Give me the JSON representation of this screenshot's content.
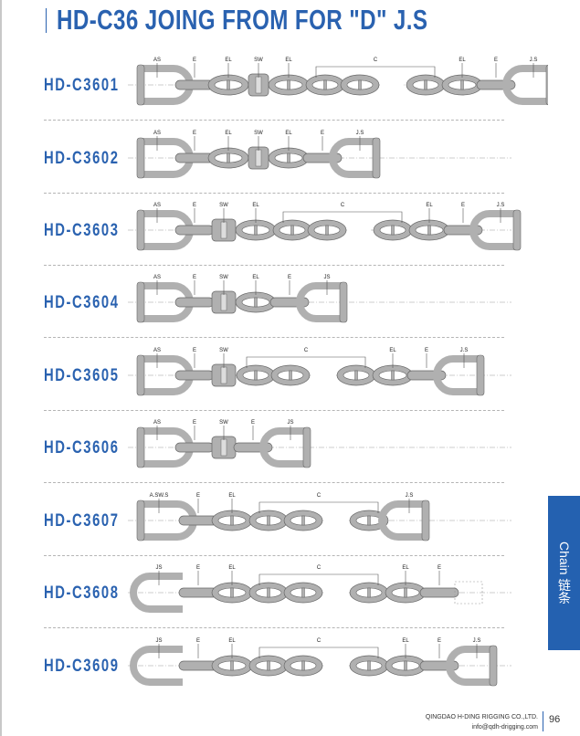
{
  "title": "HD-C36 JOING FROM FOR \"D\" J.S",
  "colors": {
    "brand": "#2a62b0",
    "tab": "#2461b0",
    "chain": "#a9a9a9"
  },
  "rows": [
    {
      "code": "HD-C3601",
      "parts": [
        [
          "shackle",
          "AS"
        ],
        [
          "E",
          "E"
        ],
        [
          "EL",
          "EL"
        ],
        [
          "SW",
          "SW"
        ],
        [
          "EL",
          "EL"
        ],
        [
          "C",
          "C"
        ],
        [
          "EL",
          "EL"
        ],
        [
          "E",
          "E"
        ],
        [
          "shackleR",
          "J.S"
        ]
      ]
    },
    {
      "code": "HD-C3602",
      "parts": [
        [
          "shackle",
          "AS"
        ],
        [
          "E",
          "E"
        ],
        [
          "EL",
          "EL"
        ],
        [
          "SW",
          "SW"
        ],
        [
          "EL",
          "EL"
        ],
        [
          "E",
          "E"
        ],
        [
          "shackleR",
          "J.S"
        ]
      ]
    },
    {
      "code": "HD-C3603",
      "parts": [
        [
          "shackle",
          "AS"
        ],
        [
          "E",
          "E"
        ],
        [
          "SWB",
          "SW"
        ],
        [
          "EL",
          "EL"
        ],
        [
          "C",
          "C"
        ],
        [
          "EL",
          "EL"
        ],
        [
          "E",
          "E"
        ],
        [
          "shackleR",
          "J.S"
        ]
      ]
    },
    {
      "code": "HD-C3604",
      "parts": [
        [
          "shackle",
          "AS"
        ],
        [
          "E",
          "E"
        ],
        [
          "SWB",
          "SW"
        ],
        [
          "EL",
          "EL"
        ],
        [
          "E",
          "E"
        ],
        [
          "shackleR",
          "JS"
        ]
      ]
    },
    {
      "code": "HD-C3605",
      "parts": [
        [
          "shackle",
          "AS"
        ],
        [
          "E",
          "E"
        ],
        [
          "SWB",
          "SW"
        ],
        [
          "C",
          "C"
        ],
        [
          "EL",
          "EL"
        ],
        [
          "E",
          "E"
        ],
        [
          "shackleR",
          "J.S"
        ]
      ]
    },
    {
      "code": "HD-C3606",
      "parts": [
        [
          "shackle",
          "AS"
        ],
        [
          "E",
          "E"
        ],
        [
          "SWB",
          "SW"
        ],
        [
          "E",
          "E"
        ],
        [
          "shackleR",
          "JS"
        ]
      ]
    },
    {
      "code": "HD-C3607",
      "parts": [
        [
          "anchorswivel",
          "A.SW.S"
        ],
        [
          "E",
          "E"
        ],
        [
          "EL",
          "EL"
        ],
        [
          "C",
          "C"
        ],
        [
          "shackleR",
          "J.S"
        ]
      ]
    },
    {
      "code": "HD-C3608",
      "parts": [
        [
          "jshackle",
          "JS"
        ],
        [
          "E",
          "E"
        ],
        [
          "EL",
          "EL"
        ],
        [
          "C",
          "C"
        ],
        [
          "EL",
          "EL"
        ],
        [
          "E",
          "E"
        ],
        [
          "end",
          ""
        ]
      ]
    },
    {
      "code": "HD-C3609",
      "parts": [
        [
          "jshackle",
          "JS"
        ],
        [
          "E",
          "E"
        ],
        [
          "EL",
          "EL"
        ],
        [
          "C",
          "C"
        ],
        [
          "EL",
          "EL"
        ],
        [
          "E",
          "E"
        ],
        [
          "shackleR",
          "J.S"
        ]
      ]
    }
  ],
  "side_tab": {
    "label": "Chain  链条"
  },
  "footer": {
    "company": "QINGDAO H-DING RIGGING CO.,LTD.",
    "email": "info@qdh-drigging.com",
    "page": "96"
  }
}
